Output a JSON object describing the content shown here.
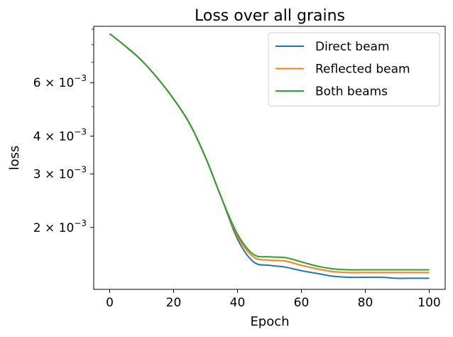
{
  "chart_data": {
    "type": "line",
    "title": "Loss over all grains",
    "xlabel": "Epoch",
    "ylabel": "loss",
    "xlim": [
      -5,
      105
    ],
    "ylim": [
      0.00125,
      0.0092
    ],
    "y_scale": "log",
    "x_ticks": [
      0,
      20,
      40,
      60,
      80,
      100
    ],
    "y_ticks": [
      {
        "value": 0.006,
        "label": "6 × 10",
        "exp": "−3"
      },
      {
        "value": 0.004,
        "label": "4 × 10",
        "exp": "−3"
      },
      {
        "value": 0.003,
        "label": "3 × 10",
        "exp": "−3"
      },
      {
        "value": 0.002,
        "label": "2 × 10",
        "exp": "−3"
      }
    ],
    "y_minor_ticks": [
      0.005,
      0.007,
      0.008,
      0.009
    ],
    "grid": false,
    "legend_position": "top-right",
    "x": [
      0,
      5,
      10,
      15,
      20,
      25,
      30,
      35,
      40,
      45,
      50,
      55,
      60,
      65,
      70,
      75,
      80,
      85,
      90,
      95,
      100
    ],
    "series": [
      {
        "name": "Direct beam",
        "color": "#1f77b4",
        "values": [
          0.0087,
          0.0079,
          0.0071,
          0.0062,
          0.0053,
          0.0044,
          0.0034,
          0.0025,
          0.00183,
          0.00154,
          0.0015,
          0.00148,
          0.00144,
          0.00141,
          0.00138,
          0.00137,
          0.00137,
          0.00137,
          0.00136,
          0.00136,
          0.00136
        ]
      },
      {
        "name": "Reflected beam",
        "color": "#ff7f0e",
        "values": [
          0.0087,
          0.0079,
          0.0071,
          0.0062,
          0.0053,
          0.0044,
          0.0034,
          0.0025,
          0.00187,
          0.0016,
          0.00156,
          0.00155,
          0.0015,
          0.00146,
          0.00143,
          0.00142,
          0.00142,
          0.00142,
          0.00142,
          0.00142,
          0.00142
        ]
      },
      {
        "name": "Both beams",
        "color": "#2ca02c",
        "values": [
          0.0087,
          0.0079,
          0.0071,
          0.0062,
          0.0053,
          0.0044,
          0.0034,
          0.0025,
          0.0019,
          0.00163,
          0.0016,
          0.00159,
          0.00154,
          0.00149,
          0.00146,
          0.00145,
          0.00145,
          0.00145,
          0.00145,
          0.00145,
          0.00145
        ]
      }
    ]
  }
}
